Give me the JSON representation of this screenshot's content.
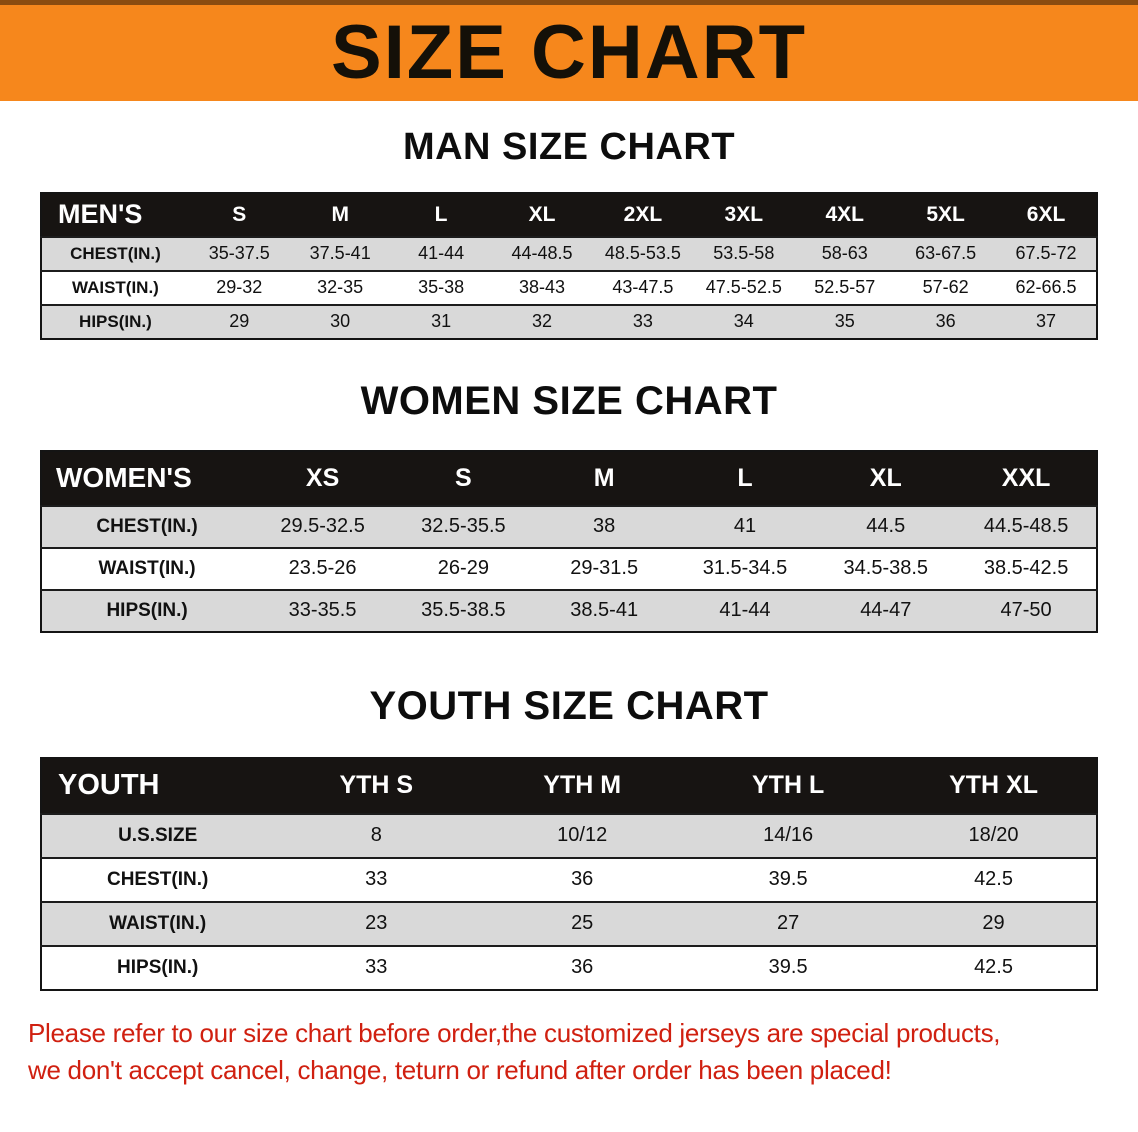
{
  "banner": {
    "title": "SIZE CHART"
  },
  "sections": {
    "men": {
      "heading": "MAN SIZE CHART",
      "table": {
        "header": [
          "MEN'S",
          "S",
          "M",
          "L",
          "XL",
          "2XL",
          "3XL",
          "4XL",
          "5XL",
          "6XL"
        ],
        "rows": [
          {
            "label": "CHEST(IN.)",
            "values": [
              "35-37.5",
              "37.5-41",
              "41-44",
              "44-48.5",
              "48.5-53.5",
              "53.5-58",
              "58-63",
              "63-67.5",
              "67.5-72"
            ]
          },
          {
            "label": "WAIST(IN.)",
            "values": [
              "29-32",
              "32-35",
              "35-38",
              "38-43",
              "43-47.5",
              "47.5-52.5",
              "52.5-57",
              "57-62",
              "62-66.5"
            ]
          },
          {
            "label": "HIPS(IN.)",
            "values": [
              "29",
              "30",
              "31",
              "32",
              "33",
              "34",
              "35",
              "36",
              "37"
            ]
          }
        ]
      }
    },
    "women": {
      "heading": "WOMEN SIZE CHART",
      "table": {
        "header": [
          "WOMEN'S",
          "XS",
          "S",
          "M",
          "L",
          "XL",
          "XXL"
        ],
        "rows": [
          {
            "label": "CHEST(IN.)",
            "values": [
              "29.5-32.5",
              "32.5-35.5",
              "38",
              "41",
              "44.5",
              "44.5-48.5"
            ]
          },
          {
            "label": "WAIST(IN.)",
            "values": [
              "23.5-26",
              "26-29",
              "29-31.5",
              "31.5-34.5",
              "34.5-38.5",
              "38.5-42.5"
            ]
          },
          {
            "label": "HIPS(IN.)",
            "values": [
              "33-35.5",
              "35.5-38.5",
              "38.5-41",
              "41-44",
              "44-47",
              "47-50"
            ]
          }
        ]
      }
    },
    "youth": {
      "heading": "YOUTH SIZE CHART",
      "table": {
        "header": [
          "YOUTH",
          "YTH S",
          "YTH M",
          "YTH L",
          "YTH XL"
        ],
        "rows": [
          {
            "label": "U.S.SIZE",
            "values": [
              "8",
              "10/12",
              "14/16",
              "18/20"
            ]
          },
          {
            "label": "CHEST(IN.)",
            "values": [
              "33",
              "36",
              "39.5",
              "42.5"
            ]
          },
          {
            "label": "WAIST(IN.)",
            "values": [
              "23",
              "25",
              "27",
              "29"
            ]
          },
          {
            "label": "HIPS(IN.)",
            "values": [
              "33",
              "36",
              "39.5",
              "42.5"
            ]
          }
        ]
      }
    }
  },
  "disclaimer": {
    "line1": "Please refer to our size chart before order,the customized jerseys are special products,",
    "line2": "we don't accept cancel, change, teturn or refund after order has been placed!"
  },
  "colors": {
    "banner_bg": "#f6871c",
    "table_header_bg": "#171412",
    "shaded_row_bg": "#d9d9d9",
    "disclaimer_text": "#d02010"
  }
}
